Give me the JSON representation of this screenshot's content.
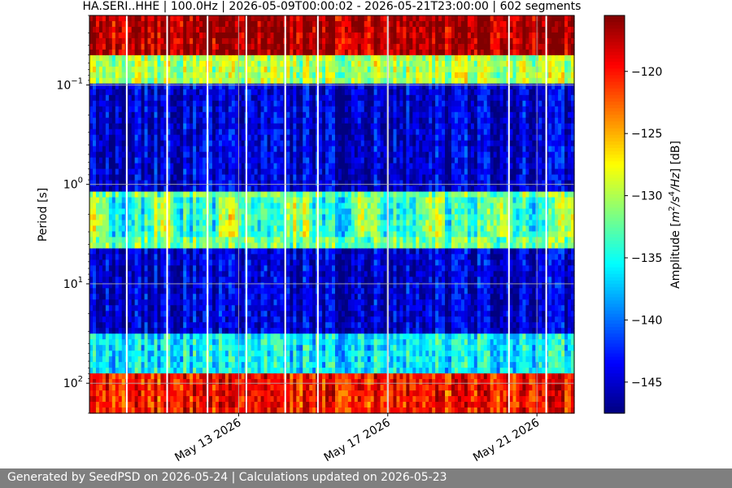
{
  "chart_data": {
    "type": "heatmap",
    "title": "HA.SERI..HHE | 100.0Hz | 2026-05-09T00:00:02 - 2026-05-21T23:00:00 | 602 segments",
    "xlabel": "",
    "ylabel": "Period [s]",
    "colorbar_label": "Amplitude [m²/s⁴/Hz] [dB]",
    "colorbar_label_parts": {
      "pre": "Amplitude [",
      "m": "m",
      "sup2": "2",
      "mid": "/s",
      "sup4": "4",
      "hz": "/Hz",
      "post": "] [dB]"
    },
    "colormap": "jet",
    "x_axis": {
      "type": "date",
      "range": [
        "2026-05-09T00:00",
        "2026-05-22T00:00"
      ],
      "ticks": [
        "May 13 2026",
        "May 17 2026",
        "May 21 2026"
      ],
      "tick_dates": [
        "2026-05-13",
        "2026-05-17",
        "2026-05-21"
      ]
    },
    "y_axis": {
      "scale": "log",
      "inverted": true,
      "range": [
        0.02,
        200
      ],
      "ticks": [
        {
          "base": "10",
          "exp": "−1",
          "value": 0.1
        },
        {
          "base": "10",
          "exp": "0",
          "value": 1
        },
        {
          "base": "10",
          "exp": "1",
          "value": 10
        },
        {
          "base": "10",
          "exp": "2",
          "value": 100
        }
      ]
    },
    "colorbar": {
      "range": [
        -147.5,
        -115.5
      ],
      "ticks": [
        -120,
        -125,
        -130,
        -135,
        -140,
        -145
      ],
      "tick_labels": [
        "−120",
        "−125",
        "−130",
        "−135",
        "−140",
        "−145"
      ]
    },
    "grid": true,
    "period_bands_db": [
      {
        "period_range": [
          0.02,
          0.05
        ],
        "amplitude_db": -117
      },
      {
        "period_range": [
          0.05,
          0.1
        ],
        "amplitude_db": -130
      },
      {
        "period_range": [
          0.1,
          1
        ],
        "amplitude_db": -145
      },
      {
        "period_range": [
          1.5,
          3.5
        ],
        "amplitude_db": -132
      },
      {
        "period_range": [
          5,
          30
        ],
        "amplitude_db": -145
      },
      {
        "period_range": [
          30,
          80
        ],
        "amplitude_db": -136
      },
      {
        "period_range": [
          80,
          200
        ],
        "amplitude_db": -120
      }
    ],
    "gaps": [
      "2026-05-10T00:00",
      "2026-05-11T02:00",
      "2026-05-12T04:00",
      "2026-05-13T05:00",
      "2026-05-14T06:00",
      "2026-05-15T03:00",
      "2026-05-17T00:00",
      "2026-05-20T06:00",
      "2026-05-21T06:00"
    ]
  },
  "footer": {
    "text": "Generated by SeedPSD on 2026-05-24 | Calculations updated on 2026-05-23"
  }
}
